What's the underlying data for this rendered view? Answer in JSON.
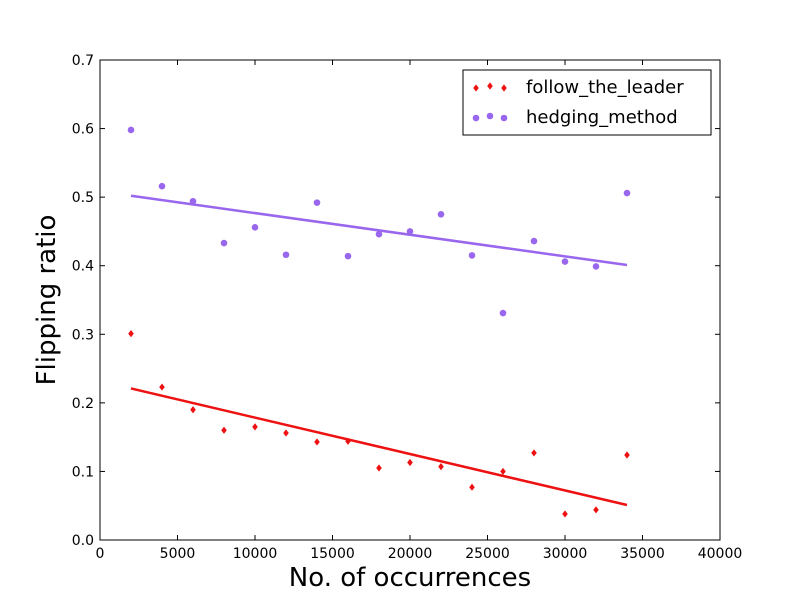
{
  "chart_data": {
    "type": "scatter",
    "xlabel": "No. of occurrences",
    "ylabel": "Flipping ratio",
    "xlim": [
      0,
      40000
    ],
    "ylim": [
      0.0,
      0.7
    ],
    "x_ticks": [
      "0",
      "5000",
      "10000",
      "15000",
      "20000",
      "25000",
      "30000",
      "35000",
      "40000"
    ],
    "y_ticks": [
      "0.0",
      "0.1",
      "0.2",
      "0.3",
      "0.4",
      "0.5",
      "0.6",
      "0.7"
    ],
    "grid": false,
    "legend_position": "top-right",
    "series": [
      {
        "name": "follow_the_leader",
        "color": "#ee1111",
        "marker": "diamond",
        "x": [
          2000,
          4000,
          6000,
          8000,
          10000,
          12000,
          14000,
          16000,
          18000,
          20000,
          22000,
          24000,
          26000,
          28000,
          30000,
          32000,
          34000
        ],
        "y": [
          0.301,
          0.223,
          0.19,
          0.16,
          0.165,
          0.156,
          0.143,
          0.144,
          0.105,
          0.113,
          0.107,
          0.077,
          0.1,
          0.127,
          0.038,
          0.044,
          0.124
        ],
        "trend": {
          "x": [
            2000,
            34000
          ],
          "y": [
            0.221,
            0.051
          ]
        }
      },
      {
        "name": "hedging_method",
        "color": "#9966ee",
        "marker": "circle",
        "x": [
          2000,
          4000,
          6000,
          8000,
          10000,
          12000,
          14000,
          16000,
          18000,
          20000,
          22000,
          24000,
          26000,
          28000,
          30000,
          32000,
          34000
        ],
        "y": [
          0.598,
          0.516,
          0.494,
          0.433,
          0.456,
          0.416,
          0.492,
          0.414,
          0.446,
          0.45,
          0.475,
          0.415,
          0.331,
          0.436,
          0.406,
          0.399,
          0.506
        ],
        "trend": {
          "x": [
            2000,
            34000
          ],
          "y": [
            0.502,
            0.401
          ]
        }
      }
    ]
  }
}
